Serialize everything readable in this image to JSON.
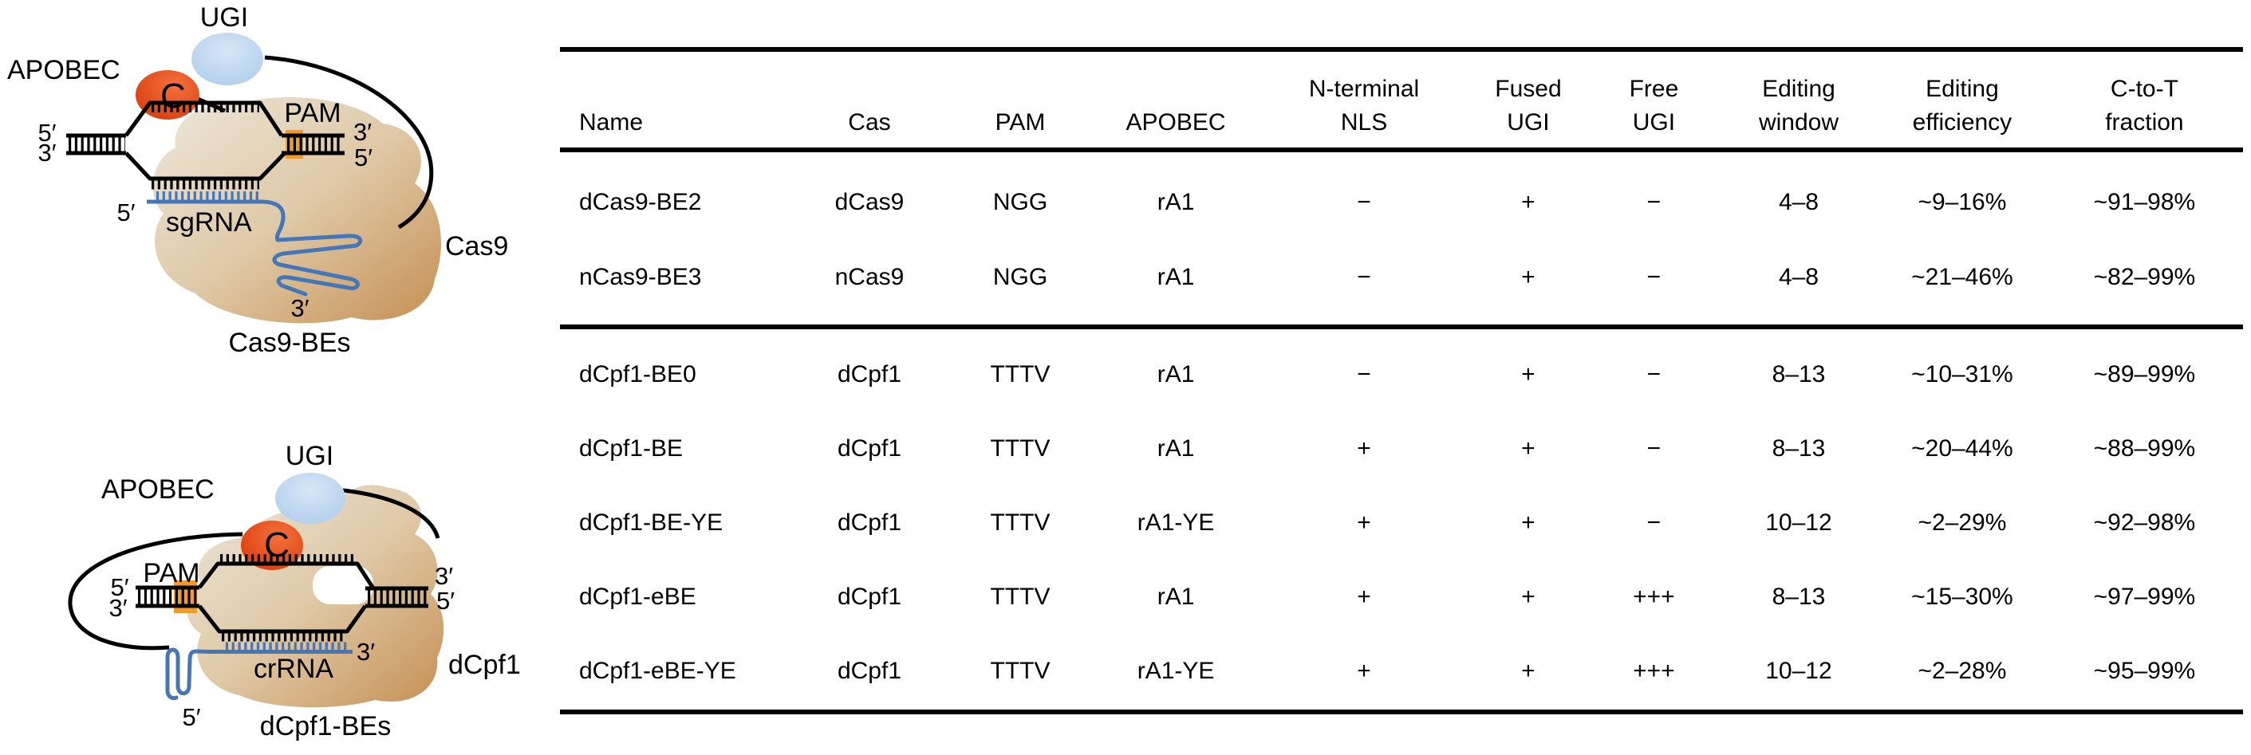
{
  "figure": {
    "panels": {
      "cas9": {
        "ugi": "UGI",
        "apobec": "APOBEC",
        "deaminated_base": "C",
        "pam": "PAM",
        "dna_left_top": "5′",
        "dna_left_bottom": "3′",
        "dna_right_top": "3′",
        "dna_right_bottom": "5′",
        "guide_label": "sgRNA",
        "guide_five_prime": "5′",
        "guide_three_prime": "3′",
        "protein": "Cas9",
        "caption": "Cas9-BEs"
      },
      "cpf1": {
        "ugi": "UGI",
        "apobec": "APOBEC",
        "deaminated_base": "C",
        "pam": "PAM",
        "dna_left_top": "5′",
        "dna_left_bottom": "3′",
        "dna_right_top": "3′",
        "dna_right_bottom": "5′",
        "guide_label": "crRNA",
        "guide_five_prime": "5′",
        "guide_three_prime": "3′",
        "protein": "dCpf1",
        "caption": "dCpf1-BEs"
      }
    },
    "colors": {
      "apobec_red": "#E2491A",
      "ugi_blue": "#B7D2EC",
      "pam_orange": "#F39A28",
      "rna_blue": "#4377B7",
      "protein_tan_light": "#EDE7DB",
      "protein_tan_dark": "#C68F52",
      "line_black": "#000000"
    }
  },
  "table": {
    "headers": [
      "Name",
      "Cas",
      "PAM",
      "APOBEC",
      "N-terminal\nNLS",
      "Fused\nUGI",
      "Free\nUGI",
      "Editing\nwindow",
      "Editing\nefficiency",
      "C-to-T\nfraction"
    ],
    "sections": [
      {
        "rows": [
          {
            "cells": [
              "dCas9-BE2",
              "dCas9",
              "NGG",
              "rA1",
              "−",
              "+",
              "−",
              "4–8",
              "~9–16%",
              "~91–98%"
            ]
          },
          {
            "cells": [
              "nCas9-BE3",
              "nCas9",
              "NGG",
              "rA1",
              "−",
              "+",
              "−",
              "4–8",
              "~21–46%",
              "~82–99%"
            ]
          }
        ]
      },
      {
        "rows": [
          {
            "cells": [
              "dCpf1-BE0",
              "dCpf1",
              "TTTV",
              "rA1",
              "−",
              "+",
              "−",
              "8–13",
              "~10–31%",
              "~89–99%"
            ]
          },
          {
            "cells": [
              "dCpf1-BE",
              "dCpf1",
              "TTTV",
              "rA1",
              "+",
              "+",
              "−",
              "8–13",
              "~20–44%",
              "~88–99%"
            ]
          },
          {
            "cells": [
              "dCpf1-BE-YE",
              "dCpf1",
              "TTTV",
              "rA1-YE",
              "+",
              "+",
              "−",
              "10–12",
              "~2–29%",
              "~92–98%"
            ]
          },
          {
            "cells": [
              "dCpf1-eBE",
              "dCpf1",
              "TTTV",
              "rA1",
              "+",
              "+",
              "+++",
              "8–13",
              "~15–30%",
              "~97–99%"
            ]
          },
          {
            "cells": [
              "dCpf1-eBE-YE",
              "dCpf1",
              "TTTV",
              "rA1-YE",
              "+",
              "+",
              "+++",
              "10–12",
              "~2–28%",
              "~95–99%"
            ]
          }
        ]
      }
    ]
  },
  "chart_data": {
    "type": "table",
    "columns": [
      "Name",
      "Cas",
      "PAM",
      "APOBEC",
      "N-terminal NLS",
      "Fused UGI",
      "Free UGI",
      "Editing window",
      "Editing efficiency",
      "C-to-T fraction"
    ],
    "rows": [
      [
        "dCas9-BE2",
        "dCas9",
        "NGG",
        "rA1",
        "−",
        "+",
        "−",
        "4–8",
        "~9–16%",
        "~91–98%"
      ],
      [
        "nCas9-BE3",
        "nCas9",
        "NGG",
        "rA1",
        "−",
        "+",
        "−",
        "4–8",
        "~21–46%",
        "~82–99%"
      ],
      [
        "dCpf1-BE0",
        "dCpf1",
        "TTTV",
        "rA1",
        "−",
        "+",
        "−",
        "8–13",
        "~10–31%",
        "~89–99%"
      ],
      [
        "dCpf1-BE",
        "dCpf1",
        "TTTV",
        "rA1",
        "+",
        "+",
        "−",
        "8–13",
        "~20–44%",
        "~88–99%"
      ],
      [
        "dCpf1-BE-YE",
        "dCpf1",
        "TTTV",
        "rA1-YE",
        "+",
        "+",
        "−",
        "10–12",
        "~2–29%",
        "~92–98%"
      ],
      [
        "dCpf1-eBE",
        "dCpf1",
        "TTTV",
        "rA1",
        "+",
        "+",
        "+++",
        "8–13",
        "~15–30%",
        "~97–99%"
      ],
      [
        "dCpf1-eBE-YE",
        "dCpf1",
        "TTTV",
        "rA1-YE",
        "+",
        "+",
        "+++",
        "10–12",
        "~2–28%",
        "~95–99%"
      ]
    ]
  }
}
